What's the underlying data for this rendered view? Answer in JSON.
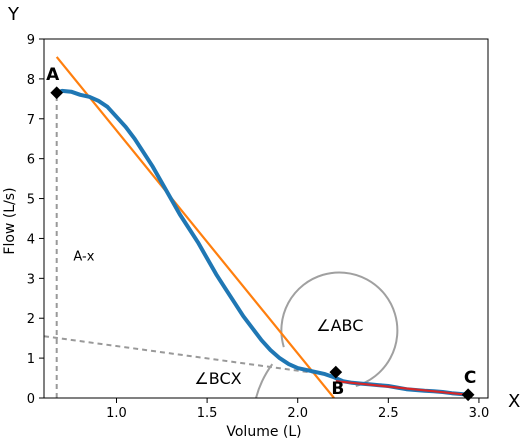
{
  "chart_data": {
    "type": "line",
    "xlabel": "Volume (L)",
    "ylabel": "Flow (L/s)",
    "corner_x": "X",
    "corner_y": "Y",
    "xlim": [
      0.6,
      3.05
    ],
    "ylim": [
      0,
      9
    ],
    "x_ticks": [
      1.0,
      1.5,
      2.0,
      2.5,
      3.0
    ],
    "x_tick_labels": [
      "1.0",
      "1.5",
      "2.0",
      "2.5",
      "3.0"
    ],
    "y_ticks": [
      0,
      1,
      2,
      3,
      4,
      5,
      6,
      7,
      8,
      9
    ],
    "y_tick_labels": [
      "0",
      "1",
      "2",
      "3",
      "4",
      "5",
      "6",
      "7",
      "8",
      "9"
    ],
    "grid": false,
    "colors": {
      "flow_curve": "#1f77b4",
      "fit_line_upper": "#ff7f0e",
      "fit_line_lower": "#d62728",
      "guides": "#999999",
      "angle_arc": "#a0a0a0",
      "marker": "#000000"
    },
    "series": [
      {
        "role": "flow-curve",
        "x": [
          0.67,
          0.7,
          0.75,
          0.8,
          0.85,
          0.9,
          0.95,
          1.0,
          1.05,
          1.1,
          1.15,
          1.2,
          1.25,
          1.3,
          1.35,
          1.4,
          1.45,
          1.5,
          1.55,
          1.6,
          1.65,
          1.7,
          1.75,
          1.8,
          1.85,
          1.9,
          1.95,
          2.0,
          2.05,
          2.1,
          2.15,
          2.2,
          2.25,
          2.3,
          2.35,
          2.4,
          2.45,
          2.5,
          2.55,
          2.6,
          2.65,
          2.7,
          2.75,
          2.8,
          2.85,
          2.9,
          2.94
        ],
        "y": [
          7.65,
          7.7,
          7.68,
          7.6,
          7.55,
          7.45,
          7.3,
          7.05,
          6.8,
          6.5,
          6.15,
          5.8,
          5.4,
          5.0,
          4.6,
          4.25,
          3.9,
          3.5,
          3.1,
          2.75,
          2.4,
          2.05,
          1.75,
          1.45,
          1.2,
          1.0,
          0.85,
          0.75,
          0.7,
          0.65,
          0.6,
          0.52,
          0.42,
          0.38,
          0.36,
          0.34,
          0.32,
          0.3,
          0.26,
          0.22,
          0.2,
          0.18,
          0.17,
          0.15,
          0.12,
          0.1,
          0.08
        ]
      },
      {
        "role": "fit-line-upper",
        "x": [
          0.67,
          2.2
        ],
        "y": [
          8.55,
          0.0
        ]
      },
      {
        "role": "fit-line-lower",
        "x": [
          2.21,
          2.94
        ],
        "y": [
          0.42,
          0.08
        ]
      },
      {
        "role": "dashed-extension",
        "x": [
          0.6,
          2.22
        ],
        "y": [
          1.55,
          0.55
        ]
      },
      {
        "role": "dashed-vertical",
        "x": [
          0.67,
          0.67
        ],
        "y": [
          0.0,
          7.65
        ]
      }
    ],
    "points": [
      {
        "label": "A",
        "x": 0.67,
        "y": 7.65
      },
      {
        "label": "B",
        "x": 2.21,
        "y": 0.65
      },
      {
        "label": "C",
        "x": 2.94,
        "y": 0.08
      }
    ],
    "annotations": {
      "ax_label": "A-x",
      "abc_label": "∠ABC",
      "bcx_label": "∠BCX"
    }
  }
}
